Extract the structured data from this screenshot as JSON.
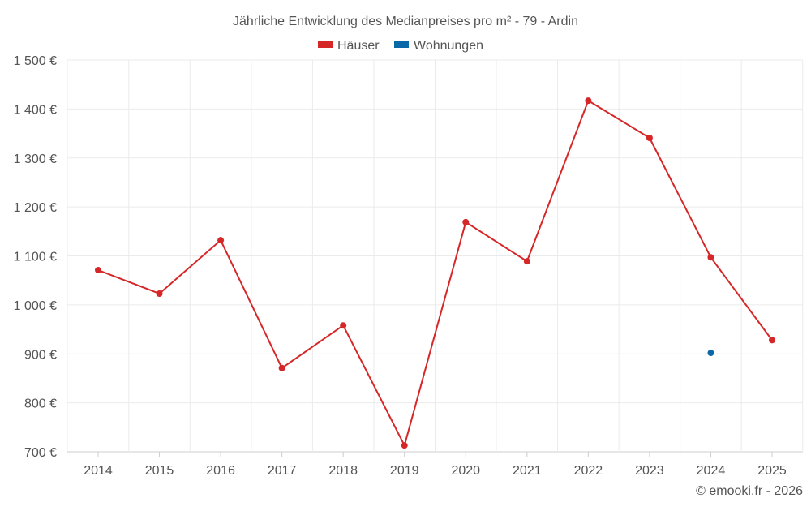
{
  "chart_data": {
    "type": "line",
    "title": "Jährliche Entwicklung des Medianpreises pro m² - 79 - Ardin",
    "xlabel": "",
    "ylabel": "",
    "categories": [
      "2014",
      "2015",
      "2016",
      "2017",
      "2018",
      "2019",
      "2020",
      "2021",
      "2022",
      "2023",
      "2024",
      "2025"
    ],
    "ylim": [
      700,
      1500
    ],
    "yticks": [
      700,
      800,
      900,
      1000,
      1100,
      1200,
      1300,
      1400,
      1500
    ],
    "ytick_labels": [
      "700 €",
      "800 €",
      "900 €",
      "1 000 €",
      "1 100 €",
      "1 200 €",
      "1 300 €",
      "1 400 €",
      "1 500 €"
    ],
    "grid": true,
    "legend_position": "top-center",
    "series": [
      {
        "name": "Häuser",
        "color": "#d62728",
        "values": [
          1071,
          1023,
          1132,
          871,
          958,
          713,
          1169,
          1089,
          1417,
          1341,
          1097,
          928
        ]
      },
      {
        "name": "Wohnungen",
        "color": "#0868a8",
        "values": [
          null,
          null,
          null,
          null,
          null,
          null,
          null,
          null,
          null,
          null,
          902,
          null
        ]
      }
    ]
  },
  "credit": "© emooki.fr - 2026"
}
